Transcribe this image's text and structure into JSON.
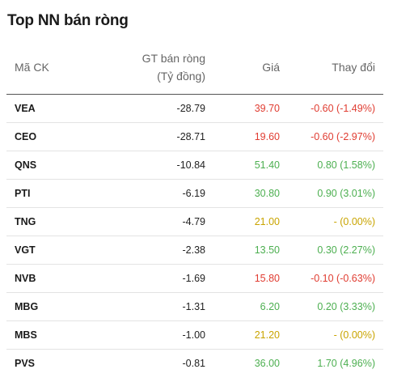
{
  "title": "Top NN bán ròng",
  "headers": {
    "symbol": "Mã CK",
    "value_line1": "GT bán ròng",
    "value_line2": "(Tỷ đồng)",
    "price": "Giá",
    "change": "Thay đổi"
  },
  "colors": {
    "down": "#e03c31",
    "up": "#4caf50",
    "reference": "#c9a400"
  },
  "rows": [
    {
      "symbol": "VEA",
      "value": "-28.79",
      "price": "39.70",
      "change": "-0.60 (-1.49%)",
      "trend": "down"
    },
    {
      "symbol": "CEO",
      "value": "-28.71",
      "price": "19.60",
      "change": "-0.60 (-2.97%)",
      "trend": "down"
    },
    {
      "symbol": "QNS",
      "value": "-10.84",
      "price": "51.40",
      "change": "0.80 (1.58%)",
      "trend": "up"
    },
    {
      "symbol": "PTI",
      "value": "-6.19",
      "price": "30.80",
      "change": "0.90 (3.01%)",
      "trend": "up"
    },
    {
      "symbol": "TNG",
      "value": "-4.79",
      "price": "21.00",
      "change": "- (0.00%)",
      "trend": "ref"
    },
    {
      "symbol": "VGT",
      "value": "-2.38",
      "price": "13.50",
      "change": "0.30 (2.27%)",
      "trend": "up"
    },
    {
      "symbol": "NVB",
      "value": "-1.69",
      "price": "15.80",
      "change": "-0.10 (-0.63%)",
      "trend": "down"
    },
    {
      "symbol": "MBG",
      "value": "-1.31",
      "price": "6.20",
      "change": "0.20 (3.33%)",
      "trend": "up"
    },
    {
      "symbol": "MBS",
      "value": "-1.00",
      "price": "21.20",
      "change": "- (0.00%)",
      "trend": "ref"
    },
    {
      "symbol": "PVS",
      "value": "-0.81",
      "price": "36.00",
      "change": "1.70 (4.96%)",
      "trend": "up"
    }
  ]
}
